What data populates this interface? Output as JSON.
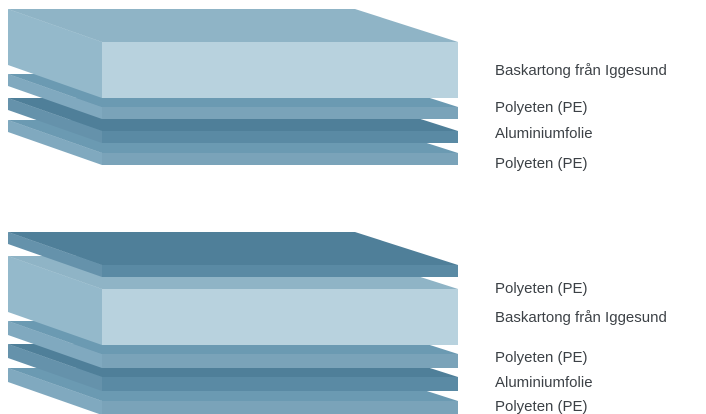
{
  "colors": {
    "thin_top": "#6b9ab2",
    "thin_side": "#80a9bf",
    "thin_front": "#7aa3b9",
    "foil_top": "#4f7f99",
    "foil_side": "#6592ab",
    "foil_front": "#5a8aa4",
    "board_top": "#8fb4c6",
    "board_side": "#94b9cb",
    "board_front": "#b8d2de",
    "label_text": "#3c4146"
  },
  "stack_1": {
    "labels": [
      "Baskartong från Iggesund",
      "Polyeten (PE)",
      "Aluminiumfolie",
      "Polyeten (PE)"
    ]
  },
  "stack_2": {
    "labels": [
      "Polyeten (PE)",
      "Baskartong från Iggesund",
      "Polyeten (PE)",
      "Aluminiumfolie",
      "Polyeten (PE)"
    ]
  }
}
